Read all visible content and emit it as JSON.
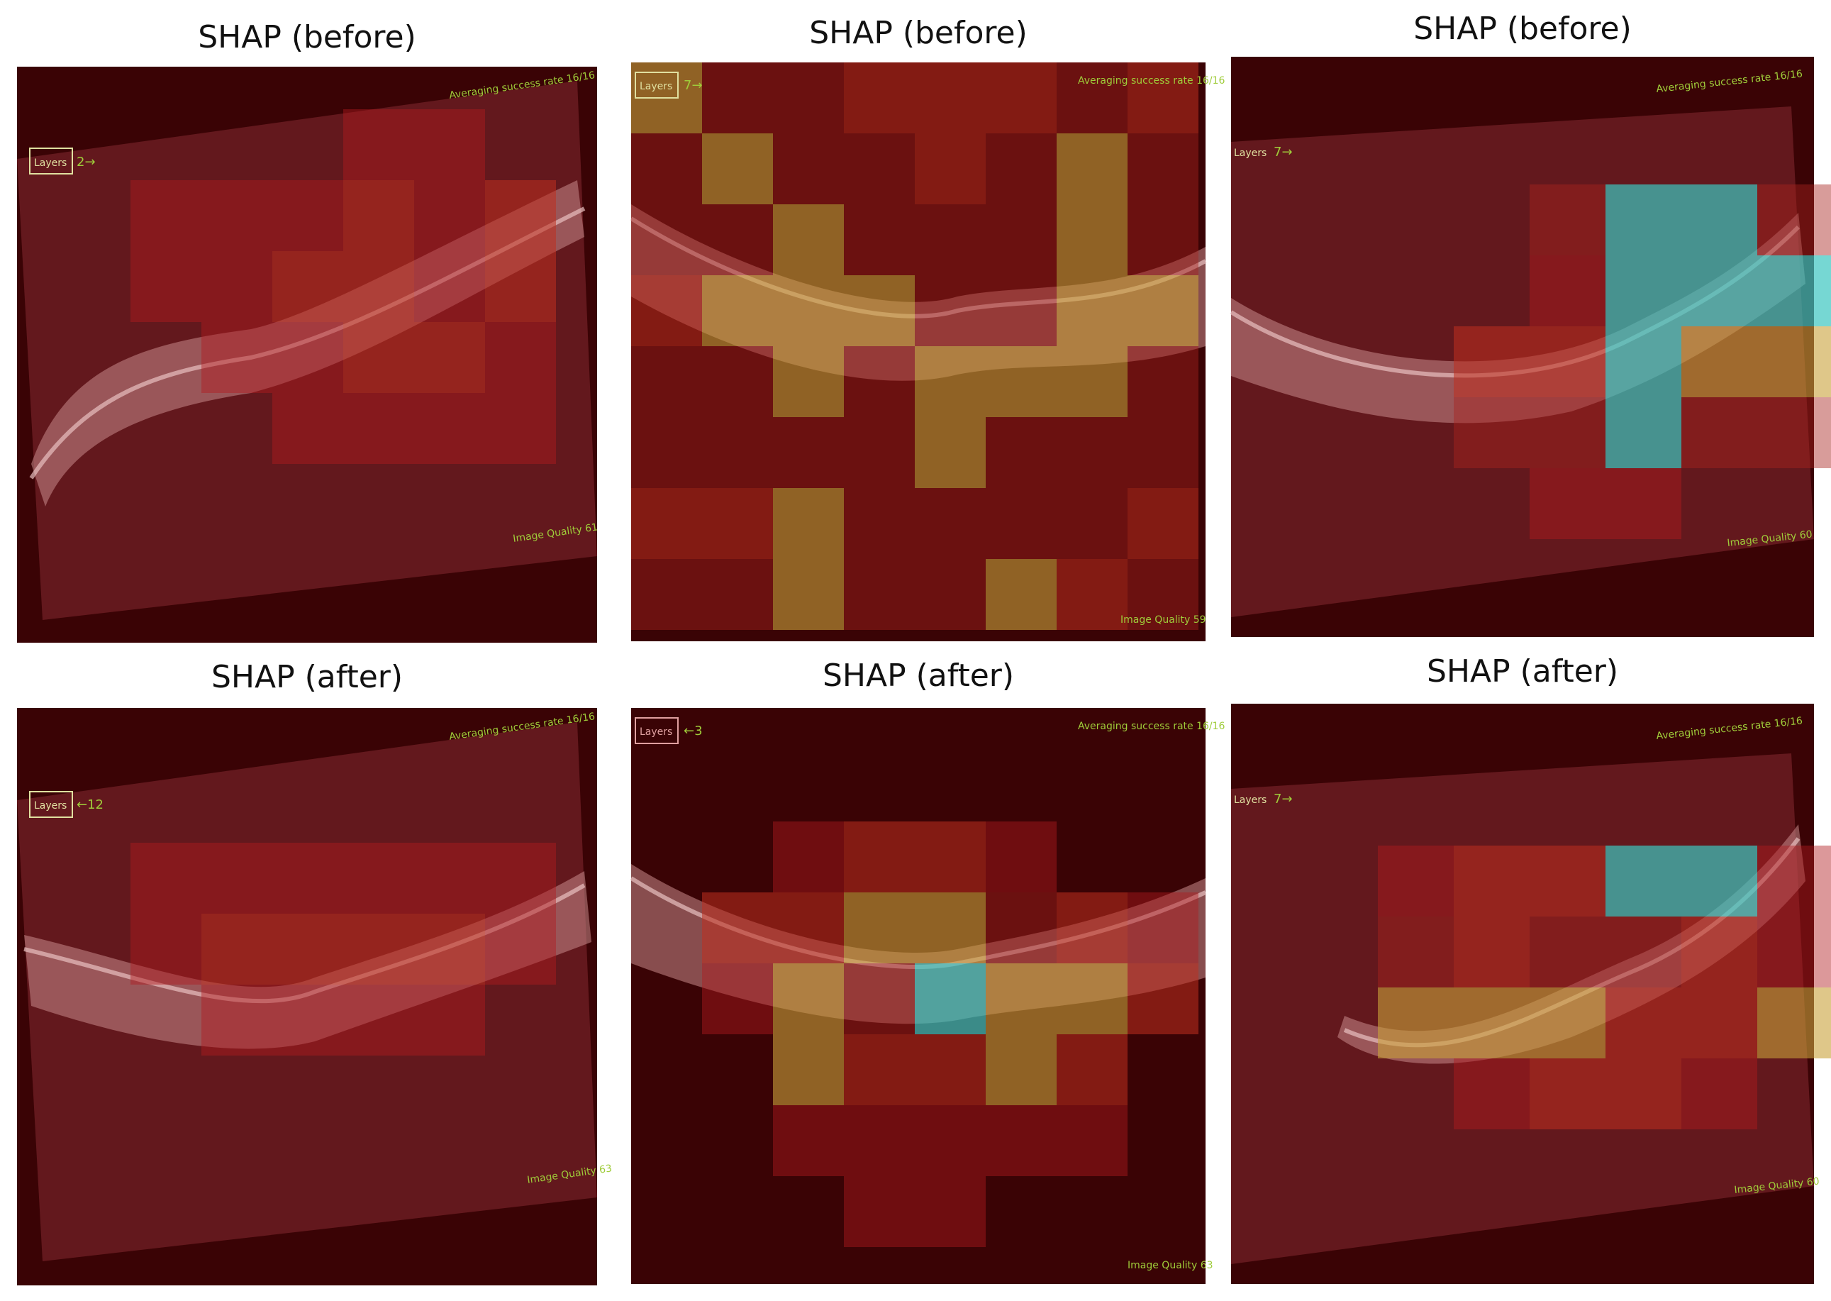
{
  "panels": [
    {
      "title": "SHAP (before)",
      "top_label": "Averaging success rate 16/16",
      "bottom_label": "Image Quality 61",
      "layers_label": "Layers",
      "arrow_label": "2→"
    },
    {
      "title": "SHAP (before)",
      "top_label": "Averaging success rate 16/16",
      "bottom_label": "Image Quality 59",
      "layers_label": "Layers",
      "arrow_label": "7→"
    },
    {
      "title": "SHAP (before)",
      "top_label": "Averaging success rate 16/16",
      "bottom_label": "Image Quality 60",
      "layers_label": "Layers",
      "arrow_label": "7→"
    },
    {
      "title": "SHAP (after)",
      "top_label": "Averaging success rate 16/16",
      "bottom_label": "Image Quality 63",
      "layers_label": "Layers",
      "arrow_label": "←12"
    },
    {
      "title": "SHAP (after)",
      "top_label": "Averaging success rate 16/16",
      "bottom_label": "Image Quality 63",
      "layers_label": "Layers",
      "arrow_label": "←3"
    },
    {
      "title": "SHAP (after)",
      "top_label": "Averaging success rate 16/16",
      "bottom_label": "Image Quality 60",
      "layers_label": "Layers",
      "arrow_label": "7→"
    }
  ],
  "colors": {
    "background": "#3a0305",
    "retina_band": "#c98a8a",
    "shap_low": "#b11a1f",
    "shap_mid": "#c9a23a",
    "shap_high": "#3cc6c0"
  },
  "heatmaps": [
    [
      [
        0,
        0,
        0,
        0,
        1,
        1,
        0,
        0
      ],
      [
        0,
        1,
        1,
        1,
        2,
        1,
        2,
        0
      ],
      [
        0,
        1,
        1,
        2,
        2,
        1,
        2,
        0
      ],
      [
        0,
        0,
        1,
        1,
        2,
        2,
        1,
        0
      ],
      [
        0,
        0,
        0,
        1,
        1,
        1,
        1,
        0
      ]
    ],
    [
      [
        4,
        3,
        3,
        2,
        2,
        2,
        3,
        2
      ],
      [
        3,
        4,
        3,
        3,
        2,
        3,
        4,
        3
      ],
      [
        3,
        3,
        4,
        3,
        3,
        3,
        4,
        3
      ],
      [
        2,
        4,
        4,
        4,
        3,
        3,
        4,
        4
      ],
      [
        3,
        3,
        4,
        3,
        4,
        4,
        4,
        3
      ],
      [
        3,
        3,
        3,
        3,
        4,
        3,
        3,
        3
      ],
      [
        2,
        2,
        4,
        3,
        3,
        3,
        3,
        2
      ],
      [
        3,
        3,
        4,
        3,
        3,
        4,
        2,
        3
      ]
    ],
    [
      [
        0,
        0,
        0,
        0,
        0,
        0,
        0,
        0
      ],
      [
        0,
        0,
        0,
        3,
        5,
        5,
        3,
        0
      ],
      [
        0,
        0,
        0,
        1,
        5,
        5,
        5,
        0
      ],
      [
        0,
        0,
        2,
        2,
        5,
        4,
        4,
        2
      ],
      [
        0,
        0,
        3,
        3,
        5,
        3,
        3,
        2
      ],
      [
        0,
        0,
        0,
        1,
        1,
        0,
        0,
        0
      ]
    ],
    [
      [
        0,
        0,
        0,
        0,
        0,
        0,
        0,
        0
      ],
      [
        0,
        1,
        1,
        1,
        1,
        1,
        1,
        0
      ],
      [
        0,
        1,
        2,
        2,
        2,
        2,
        1,
        0
      ],
      [
        0,
        0,
        1,
        1,
        1,
        1,
        0,
        0
      ],
      [
        0,
        0,
        0,
        0,
        0,
        0,
        0,
        0
      ]
    ],
    [
      [
        0,
        0,
        0,
        0,
        0,
        0,
        0,
        0
      ],
      [
        0,
        0,
        1,
        2,
        2,
        1,
        0,
        0
      ],
      [
        0,
        2,
        2,
        4,
        4,
        3,
        2,
        1
      ],
      [
        0,
        1,
        4,
        3,
        5,
        4,
        4,
        2
      ],
      [
        0,
        0,
        4,
        2,
        2,
        4,
        2,
        0
      ],
      [
        0,
        0,
        1,
        1,
        1,
        1,
        1,
        0
      ],
      [
        0,
        0,
        0,
        1,
        1,
        0,
        0,
        0
      ]
    ],
    [
      [
        0,
        0,
        0,
        0,
        0,
        0,
        0,
        0
      ],
      [
        0,
        1,
        2,
        2,
        5,
        5,
        1,
        0
      ],
      [
        0,
        3,
        2,
        3,
        3,
        2,
        1,
        0
      ],
      [
        0,
        4,
        4,
        4,
        2,
        2,
        4,
        1
      ],
      [
        0,
        0,
        1,
        2,
        2,
        1,
        0,
        0
      ],
      [
        0,
        0,
        0,
        0,
        0,
        0,
        0,
        0
      ]
    ]
  ]
}
